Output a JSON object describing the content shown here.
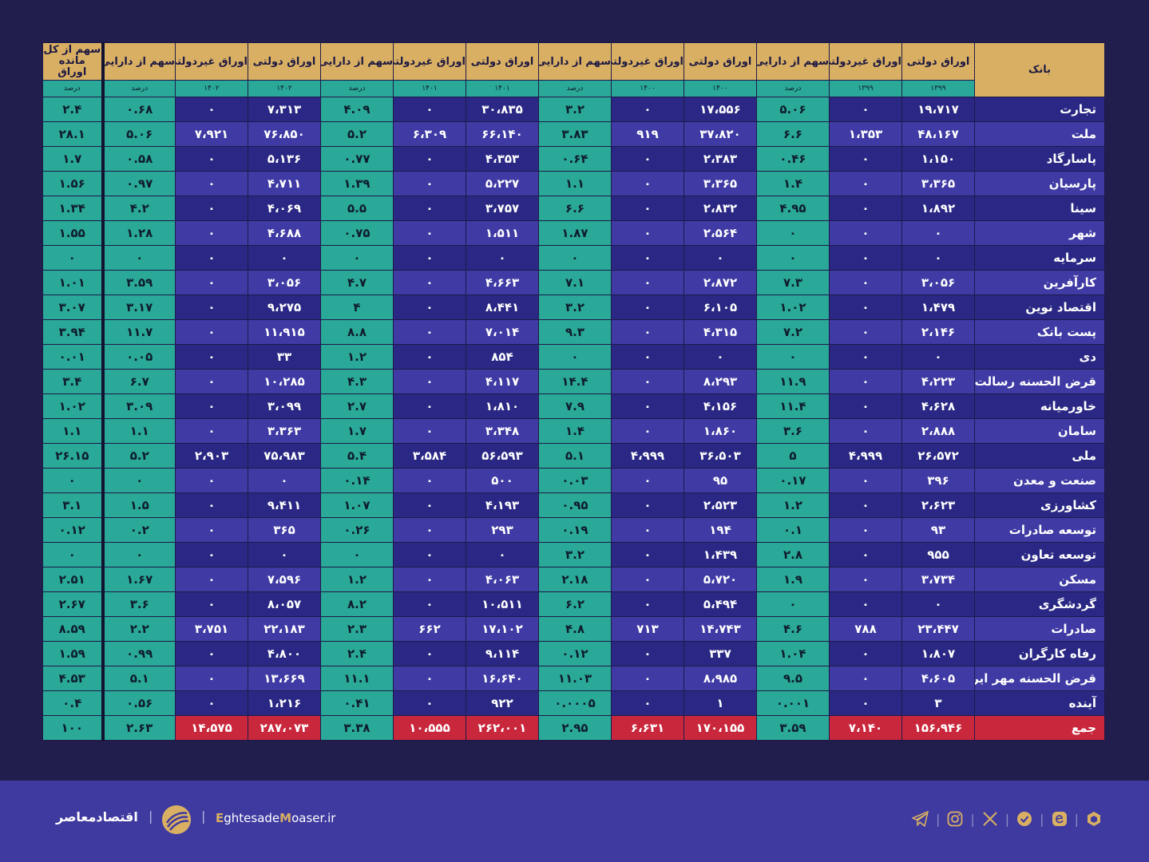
{
  "header": {
    "bank": "بانک",
    "columns": [
      {
        "label": "اوراق دولتی",
        "sub": "۱۳۹۹"
      },
      {
        "label": "اوراق غیردولتی",
        "sub": "۱۳۹۹"
      },
      {
        "label": "سهم از دارایی",
        "sub": "درصد"
      },
      {
        "label": "اوراق دولتی",
        "sub": "۱۴۰۰"
      },
      {
        "label": "اوراق غیردولتی",
        "sub": "۱۴۰۰"
      },
      {
        "label": "سهم از دارایی",
        "sub": "درصد"
      },
      {
        "label": "اوراق دولتی",
        "sub": "۱۴۰۱"
      },
      {
        "label": "اوراق غیردولتی",
        "sub": "۱۴۰۱"
      },
      {
        "label": "سهم از دارایی",
        "sub": "درصد"
      },
      {
        "label": "اوراق دولتی",
        "sub": "۱۴۰۲"
      },
      {
        "label": "اوراق غیردولتی",
        "sub": "۱۴۰۲"
      },
      {
        "label": "سهم از دارایی",
        "sub": "درصد"
      },
      {
        "label": "سهم از کل مانده اوراق",
        "sub": "درصد"
      }
    ]
  },
  "rows": [
    {
      "bank": "تجارت",
      "values": [
        "۱۹،۷۱۷",
        "۰",
        "۵.۰۶",
        "۱۷،۵۵۶",
        "۰",
        "۳.۲",
        "۳۰،۸۳۵",
        "۰",
        "۴.۰۹",
        "۷،۳۱۳",
        "۰",
        "۰.۶۸",
        "۲.۴"
      ]
    },
    {
      "bank": "ملت",
      "values": [
        "۴۸،۱۶۷",
        "۱،۳۵۳",
        "۶.۶",
        "۳۷،۸۲۰",
        "۹۱۹",
        "۳.۸۳",
        "۶۶،۱۴۰",
        "۶،۳۰۹",
        "۵.۲",
        "۷۶،۸۵۰",
        "۷،۹۲۱",
        "۵.۰۶",
        "۲۸.۱"
      ]
    },
    {
      "bank": "پاسارگاد",
      "values": [
        "۱،۱۵۰",
        "۰",
        "۰.۴۶",
        "۲،۳۸۳",
        "۰",
        "۰.۶۴",
        "۴،۳۵۳",
        "۰",
        "۰.۷۷",
        "۵،۱۳۶",
        "۰",
        "۰.۵۸",
        "۱.۷"
      ]
    },
    {
      "bank": "پارسیان",
      "values": [
        "۳،۳۶۵",
        "۰",
        "۱.۴",
        "۳،۳۶۵",
        "۰",
        "۱.۱",
        "۵،۲۲۷",
        "۰",
        "۱.۳۹",
        "۴،۷۱۱",
        "۰",
        "۰.۹۷",
        "۱.۵۶"
      ]
    },
    {
      "bank": "سینا",
      "values": [
        "۱،۸۹۲",
        "۰",
        "۴.۹۵",
        "۲،۸۳۲",
        "۰",
        "۶.۶",
        "۳،۷۵۷",
        "۰",
        "۵.۵",
        "۴،۰۶۹",
        "۰",
        "۴.۲",
        "۱.۳۴"
      ]
    },
    {
      "bank": "شهر",
      "values": [
        "۰",
        "۰",
        "۰",
        "۲،۵۶۴",
        "۰",
        "۱.۸۷",
        "۱،۵۱۱",
        "۰",
        "۰.۷۵",
        "۴،۶۸۸",
        "۰",
        "۱.۲۸",
        "۱.۵۵"
      ]
    },
    {
      "bank": "سرمایه",
      "values": [
        "۰",
        "۰",
        "۰",
        "۰",
        "۰",
        "۰",
        "۰",
        "۰",
        "۰",
        "۰",
        "۰",
        "۰",
        "۰"
      ]
    },
    {
      "bank": "کارآفرین",
      "values": [
        "۳،۰۵۶",
        "۰",
        "۷.۳",
        "۲،۸۷۲",
        "۰",
        "۷.۱",
        "۴،۶۶۳",
        "۰",
        "۴.۷",
        "۳،۰۵۶",
        "۰",
        "۳.۵۹",
        "۱.۰۱"
      ]
    },
    {
      "bank": "اقتصاد نوین",
      "values": [
        "۱،۴۷۹",
        "۰",
        "۱.۰۲",
        "۶،۱۰۵",
        "۰",
        "۳.۲",
        "۸،۴۴۱",
        "۰",
        "۴",
        "۹،۲۷۵",
        "۰",
        "۳.۱۷",
        "۳.۰۷"
      ]
    },
    {
      "bank": "پست بانک",
      "values": [
        "۲،۱۴۶",
        "۰",
        "۷.۲",
        "۴،۳۱۵",
        "۰",
        "۹.۳",
        "۷،۰۱۴",
        "۰",
        "۸.۸",
        "۱۱،۹۱۵",
        "۰",
        "۱۱.۷",
        "۳.۹۴"
      ]
    },
    {
      "bank": "دی",
      "values": [
        "۰",
        "۰",
        "۰",
        "۰",
        "۰",
        "۰",
        "۸۵۴",
        "۰",
        "۱.۲",
        "۳۳",
        "۰",
        "۰.۰۵",
        "۰.۰۱"
      ]
    },
    {
      "bank": "قرض الحسنه رسالت",
      "values": [
        "۴،۲۲۳",
        "۰",
        "۱۱.۹",
        "۸،۲۹۳",
        "۰",
        "۱۴.۴",
        "۴،۱۱۷",
        "۰",
        "۴.۳",
        "۱۰،۲۸۵",
        "۰",
        "۶.۷",
        "۳.۴"
      ]
    },
    {
      "bank": "خاورمیانه",
      "values": [
        "۴،۶۲۸",
        "۰",
        "۱۱.۴",
        "۴،۱۵۶",
        "۰",
        "۷.۹",
        "۱،۸۱۰",
        "۰",
        "۲.۷",
        "۳،۰۹۹",
        "۰",
        "۳.۰۹",
        "۱.۰۲"
      ]
    },
    {
      "bank": "سامان",
      "values": [
        "۲،۸۸۸",
        "۰",
        "۳.۶",
        "۱،۸۶۰",
        "۰",
        "۱.۴",
        "۳،۳۴۸",
        "۰",
        "۱.۷",
        "۳،۳۶۳",
        "۰",
        "۱.۱",
        "۱.۱"
      ]
    },
    {
      "bank": "ملی",
      "values": [
        "۲۶،۵۷۲",
        "۴،۹۹۹",
        "۵",
        "۳۶،۵۰۳",
        "۴،۹۹۹",
        "۵.۱",
        "۵۶،۵۹۳",
        "۳،۵۸۴",
        "۵.۴",
        "۷۵،۹۸۳",
        "۲،۹۰۳",
        "۵.۲",
        "۲۶.۱۵"
      ]
    },
    {
      "bank": "صنعت و معدن",
      "values": [
        "۳۹۶",
        "۰",
        "۰.۱۷",
        "۹۵",
        "۰",
        "۰.۰۳",
        "۵۰۰",
        "۰",
        "۰.۱۴",
        "۰",
        "۰",
        "۰",
        "۰"
      ]
    },
    {
      "bank": "کشاورزی",
      "values": [
        "۲،۶۲۳",
        "۰",
        "۱.۲",
        "۲،۵۲۳",
        "۰",
        "۰.۹۵",
        "۴،۱۹۳",
        "۰",
        "۱.۰۷",
        "۹،۴۱۱",
        "۰",
        "۱.۵",
        "۳.۱"
      ]
    },
    {
      "bank": "توسعه صادرات",
      "values": [
        "۹۳",
        "۰",
        "۰.۱",
        "۱۹۴",
        "۰",
        "۰.۱۹",
        "۲۹۳",
        "۰",
        "۰.۲۶",
        "۳۶۵",
        "۰",
        "۰.۲",
        "۰.۱۲"
      ]
    },
    {
      "bank": "توسعه تعاون",
      "values": [
        "۹۵۵",
        "۰",
        "۲.۸",
        "۱،۴۳۹",
        "۰",
        "۳.۲",
        "۰",
        "۰",
        "۰",
        "۰",
        "۰",
        "۰",
        "۰"
      ]
    },
    {
      "bank": "مسکن",
      "values": [
        "۳،۷۳۴",
        "۰",
        "۱.۹",
        "۵،۷۲۰",
        "۰",
        "۲.۱۸",
        "۴،۰۶۳",
        "۰",
        "۱.۲",
        "۷،۵۹۶",
        "۰",
        "۱.۶۷",
        "۲.۵۱"
      ]
    },
    {
      "bank": "گردشگری",
      "values": [
        "۰",
        "۰",
        "۰",
        "۵،۴۹۴",
        "۰",
        "۶.۲",
        "۱۰،۵۱۱",
        "۰",
        "۸.۲",
        "۸،۰۵۷",
        "۰",
        "۳.۶",
        "۲.۶۷"
      ]
    },
    {
      "bank": "صادرات",
      "values": [
        "۲۳،۴۴۷",
        "۷۸۸",
        "۴.۶",
        "۱۴،۷۴۳",
        "۷۱۳",
        "۴.۸",
        "۱۷،۱۰۲",
        "۶۶۲",
        "۲.۳",
        "۲۲،۱۸۳",
        "۳،۷۵۱",
        "۲.۲",
        "۸.۵۹"
      ]
    },
    {
      "bank": "رفاه کارگران",
      "values": [
        "۱،۸۰۷",
        "۰",
        "۱.۰۴",
        "۳۳۷",
        "۰",
        "۰.۱۲",
        "۹،۱۱۴",
        "۰",
        "۲.۴",
        "۴،۸۰۰",
        "۰",
        "۰.۹۹",
        "۱.۵۹"
      ]
    },
    {
      "bank": "قرض الحسنه مهر ایران",
      "values": [
        "۴،۶۰۵",
        "۰",
        "۹.۵",
        "۸،۹۸۵",
        "۰",
        "۱۱.۰۳",
        "۱۶،۶۴۰",
        "۰",
        "۱۱.۱",
        "۱۳،۶۶۹",
        "۰",
        "۵.۱",
        "۴.۵۳"
      ]
    },
    {
      "bank": "آینده",
      "values": [
        "۳",
        "۰",
        "۰.۰۰۱",
        "۱",
        "۰",
        "۰.۰۰۰۵",
        "۹۲۲",
        "۰",
        "۰.۴۱",
        "۱،۲۱۶",
        "۰",
        "۰.۵۶",
        "۰.۴"
      ]
    }
  ],
  "total": {
    "bank": "جمع",
    "values": [
      "۱۵۶،۹۴۶",
      "۷،۱۴۰",
      "۳.۵۹",
      "۱۷۰،۱۵۵",
      "۶،۶۳۱",
      "۲.۹۵",
      "۲۶۲،۰۰۱",
      "۱۰،۵۵۵",
      "۳.۳۸",
      "۲۸۷،۰۷۳",
      "۱۴،۵۷۵",
      "۲.۶۳",
      "۱۰۰"
    ]
  },
  "footer": {
    "brand_name": "اقتصادمعاصر",
    "separator": "|",
    "site_bold1": "E",
    "site_mid1": "ghtesade",
    "site_bold2": "M",
    "site_mid2": "oaser.ir",
    "social_icons": [
      "telegram-icon",
      "instagram-icon",
      "x-icon",
      "shield-check-icon",
      "eitaa-icon",
      "rubika-icon"
    ],
    "icon_color": "#d9b063"
  },
  "colors": {
    "background": "#211d4d",
    "header_gold": "#d9b063",
    "teal": "#2aa898",
    "row_dark": "#2a2884",
    "row_light": "#3f3aa4",
    "total_red": "#c9283c"
  }
}
